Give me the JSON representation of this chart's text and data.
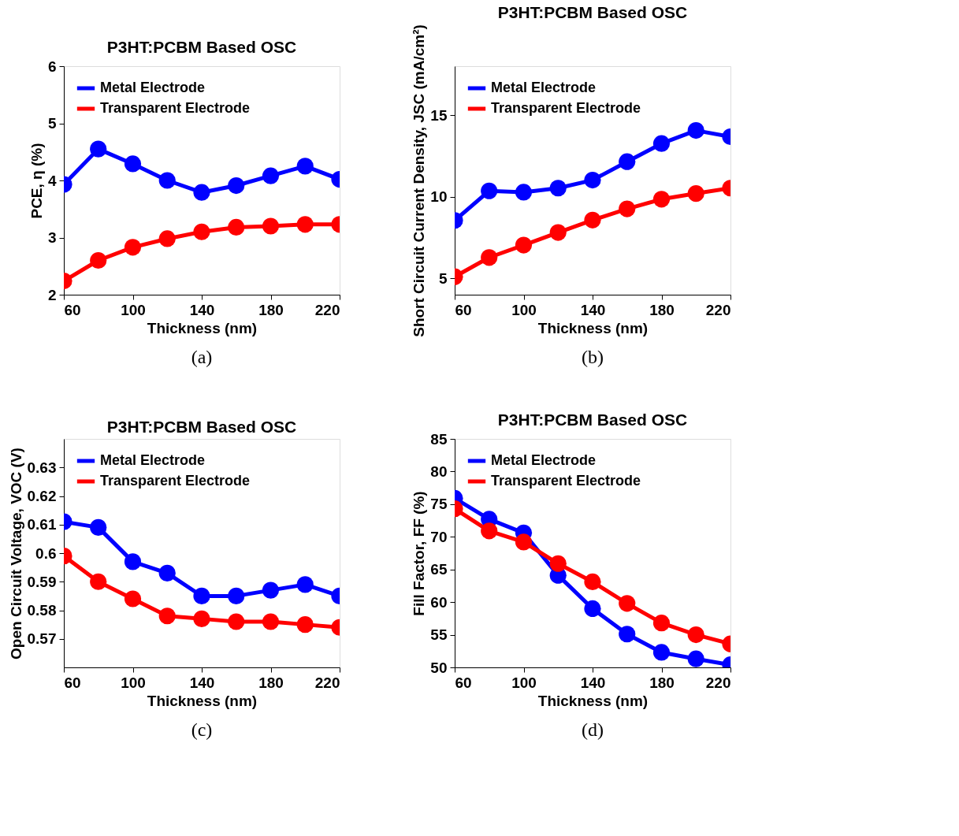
{
  "chart_data": [
    {
      "type": "line",
      "title": "P3HT:PCBM Based OSC",
      "xlabel": "Thickness (nm)",
      "ylabel": "PCE, η (%)",
      "x": [
        60,
        80,
        100,
        120,
        140,
        160,
        180,
        200,
        220
      ],
      "series": [
        {
          "name": "Metal Electrode",
          "color": "#0000ff",
          "values": [
            3.93,
            4.55,
            4.29,
            4.0,
            3.79,
            3.91,
            4.08,
            4.25,
            4.02
          ]
        },
        {
          "name": "Transparent Electrode",
          "color": "#ff0000",
          "values": [
            2.24,
            2.6,
            2.83,
            2.98,
            3.1,
            3.18,
            3.2,
            3.23,
            3.23
          ]
        }
      ],
      "xlim": [
        60,
        220
      ],
      "xticks": [
        60,
        100,
        140,
        180,
        220
      ],
      "ylim": [
        2,
        6
      ],
      "yticks": [
        2,
        3,
        4,
        5,
        6
      ],
      "grid": false,
      "legend": "top left",
      "marker": "circle",
      "line_style": "solid",
      "annotations": [
        "(a)"
      ]
    },
    {
      "type": "line",
      "title": "P3HT:PCBM Based OSC",
      "xlabel": "Thickness (nm)",
      "ylabel": "Short Circuit Current Density, JSC (mA/cm²)",
      "x": [
        60,
        80,
        100,
        120,
        140,
        160,
        180,
        200,
        220
      ],
      "series": [
        {
          "name": "Metal Electrode",
          "color": "#0000ff",
          "values": [
            8.55,
            10.36,
            10.28,
            10.53,
            11.02,
            12.15,
            13.26,
            14.06,
            13.68
          ]
        },
        {
          "name": "Transparent Electrode",
          "color": "#ff0000",
          "values": [
            5.1,
            6.28,
            7.04,
            7.81,
            8.57,
            9.26,
            9.85,
            10.2,
            10.53
          ]
        }
      ],
      "xlim": [
        60,
        220
      ],
      "xticks": [
        60,
        100,
        140,
        180,
        220
      ],
      "ylim": [
        4,
        18
      ],
      "yticks": [
        5,
        10,
        15
      ],
      "grid": false,
      "legend": "top left",
      "marker": "circle",
      "line_style": "solid",
      "annotations": [
        "(b)"
      ]
    },
    {
      "type": "line",
      "title": "P3HT:PCBM Based OSC",
      "xlabel": "Thickness (nm)",
      "ylabel": "Open Circuit Voltage, VOC (V)",
      "x": [
        60,
        80,
        100,
        120,
        140,
        160,
        180,
        200,
        220
      ],
      "series": [
        {
          "name": "Metal Electrode",
          "color": "#0000ff",
          "values": [
            0.611,
            0.609,
            0.597,
            0.593,
            0.585,
            0.585,
            0.587,
            0.589,
            0.585
          ]
        },
        {
          "name": "Transparent Electrode",
          "color": "#ff0000",
          "values": [
            0.599,
            0.59,
            0.584,
            0.578,
            0.577,
            0.576,
            0.576,
            0.575,
            0.574
          ]
        }
      ],
      "xlim": [
        60,
        220
      ],
      "xticks": [
        60,
        100,
        140,
        180,
        220
      ],
      "ylim": [
        0.56,
        0.64
      ],
      "yticks": [
        0.57,
        0.58,
        0.59,
        0.6,
        0.61,
        0.62,
        0.63
      ],
      "grid": false,
      "legend": "top left",
      "marker": "circle",
      "line_style": "solid",
      "annotations": [
        "(c)"
      ]
    },
    {
      "type": "line",
      "title": "P3HT:PCBM Based OSC",
      "xlabel": "Thickness (nm)",
      "ylabel": "Fill Factor, FF (%)",
      "x": [
        60,
        80,
        100,
        120,
        140,
        160,
        180,
        200,
        220
      ],
      "series": [
        {
          "name": "Metal Electrode",
          "color": "#0000ff",
          "values": [
            75.9,
            72.7,
            70.6,
            64.1,
            59.0,
            55.1,
            52.3,
            51.3,
            50.4
          ]
        },
        {
          "name": "Transparent Electrode",
          "color": "#ff0000",
          "values": [
            74.3,
            70.9,
            69.2,
            65.9,
            63.1,
            59.8,
            56.8,
            55.0,
            53.6
          ]
        }
      ],
      "xlim": [
        60,
        220
      ],
      "xticks": [
        60,
        100,
        140,
        180,
        220
      ],
      "ylim": [
        50,
        85
      ],
      "yticks": [
        50,
        55,
        60,
        65,
        70,
        75,
        80,
        85
      ],
      "grid": false,
      "legend": "top left",
      "marker": "circle",
      "line_style": "solid",
      "annotations": [
        "(d)"
      ]
    }
  ]
}
